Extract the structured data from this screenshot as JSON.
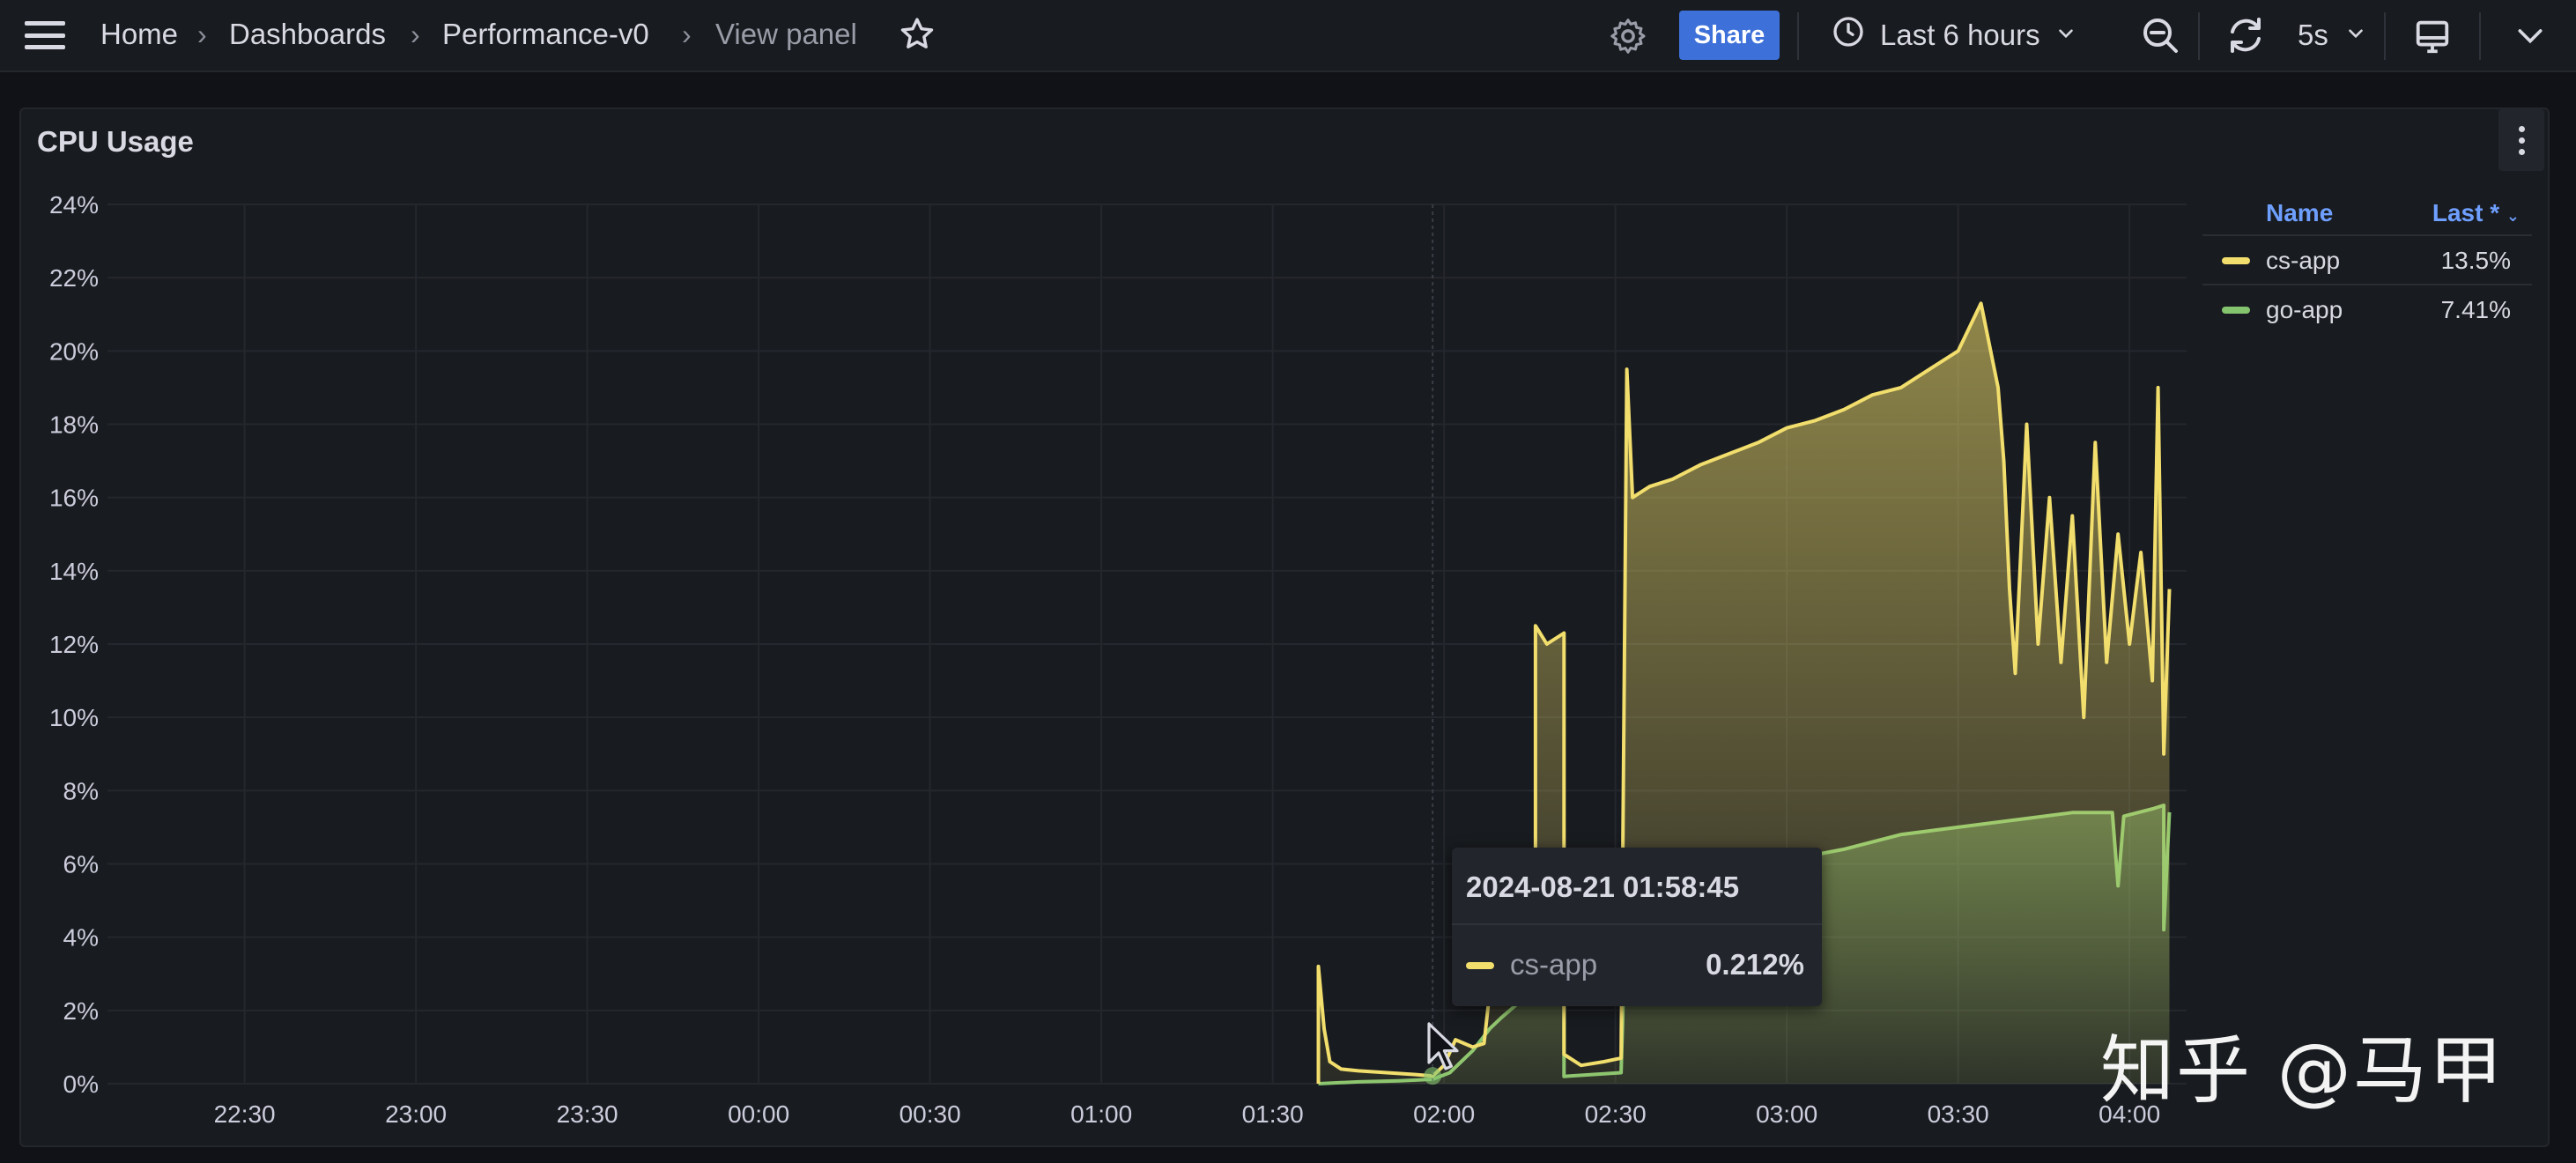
{
  "topbar": {
    "breadcrumb": [
      "Home",
      "Dashboards",
      "Performance-v0",
      "View panel"
    ],
    "separator": "›",
    "share_label": "Share",
    "time_range": "Last 6 hours",
    "refresh_interval": "5s"
  },
  "panel": {
    "title": "CPU Usage"
  },
  "legend": {
    "header_name": "Name",
    "header_last": "Last *",
    "sort_icon": "chevron-down-icon",
    "items": [
      {
        "name": "cs-app",
        "last": "13.5%",
        "color": "#f2de6d"
      },
      {
        "name": "go-app",
        "last": "7.41%",
        "color": "#85c46f"
      }
    ]
  },
  "tooltip": {
    "time": "2024-08-21 01:58:45",
    "series": "cs-app",
    "value": "0.212%",
    "color": "#f2de6d"
  },
  "watermark": "知乎 @马甲",
  "chart_data": {
    "type": "area",
    "title": "CPU Usage",
    "xlabel": "",
    "ylabel": "",
    "y_unit": "%",
    "ylim": [
      0,
      24
    ],
    "y_ticks": [
      "0%",
      "2%",
      "4%",
      "6%",
      "8%",
      "10%",
      "12%",
      "14%",
      "16%",
      "18%",
      "20%",
      "22%",
      "24%"
    ],
    "x_ticks": [
      "22:30",
      "23:00",
      "23:30",
      "00:00",
      "00:30",
      "01:00",
      "01:30",
      "02:00",
      "02:30",
      "03:00",
      "03:30",
      "04:00"
    ],
    "xlim": [
      "22:06",
      "04:10"
    ],
    "grid": true,
    "legend_position": "right",
    "series": [
      {
        "name": "cs-app",
        "color": "#f2de6d",
        "points": [
          [
            "01:38",
            0
          ],
          [
            "01:38",
            3.2
          ],
          [
            "01:39",
            1.5
          ],
          [
            "01:40",
            0.6
          ],
          [
            "01:42",
            0.4
          ],
          [
            "01:45",
            0.35
          ],
          [
            "01:50",
            0.3
          ],
          [
            "01:55",
            0.25
          ],
          [
            "01:58",
            0.21
          ],
          [
            "02:00",
            0.5
          ],
          [
            "02:02",
            1.2
          ],
          [
            "02:05",
            1.0
          ],
          [
            "02:07",
            1.1
          ],
          [
            "02:08",
            2.5
          ],
          [
            "02:10",
            2.2
          ],
          [
            "02:12",
            2.5
          ],
          [
            "02:16",
            2.4
          ],
          [
            "02:16",
            12.5
          ],
          [
            "02:18",
            12.0
          ],
          [
            "02:21",
            12.3
          ],
          [
            "02:21",
            0.8
          ],
          [
            "02:24",
            0.5
          ],
          [
            "02:28",
            0.6
          ],
          [
            "02:31",
            0.7
          ],
          [
            "02:32",
            19.5
          ],
          [
            "02:33",
            16.0
          ],
          [
            "02:36",
            16.3
          ],
          [
            "02:40",
            16.5
          ],
          [
            "02:45",
            16.9
          ],
          [
            "02:50",
            17.2
          ],
          [
            "02:55",
            17.5
          ],
          [
            "03:00",
            17.9
          ],
          [
            "03:05",
            18.1
          ],
          [
            "03:10",
            18.4
          ],
          [
            "03:15",
            18.8
          ],
          [
            "03:20",
            19.0
          ],
          [
            "03:25",
            19.5
          ],
          [
            "03:30",
            20.0
          ],
          [
            "03:34",
            21.3
          ],
          [
            "03:37",
            19.0
          ],
          [
            "03:38",
            17.0
          ],
          [
            "03:39",
            13.5
          ],
          [
            "03:40",
            11.2
          ],
          [
            "03:42",
            18.0
          ],
          [
            "03:44",
            12.0
          ],
          [
            "03:46",
            16.0
          ],
          [
            "03:48",
            11.5
          ],
          [
            "03:50",
            15.5
          ],
          [
            "03:52",
            10.0
          ],
          [
            "03:54",
            17.5
          ],
          [
            "03:56",
            11.5
          ],
          [
            "03:58",
            15.0
          ],
          [
            "04:00",
            12.0
          ],
          [
            "04:02",
            14.5
          ],
          [
            "04:04",
            11.0
          ],
          [
            "04:05",
            19.0
          ],
          [
            "04:06",
            9.0
          ],
          [
            "04:07",
            13.5
          ]
        ]
      },
      {
        "name": "go-app",
        "color": "#85c46f",
        "points": [
          [
            "01:38",
            0
          ],
          [
            "01:45",
            0.05
          ],
          [
            "01:52",
            0.08
          ],
          [
            "01:58",
            0.12
          ],
          [
            "02:01",
            0.3
          ],
          [
            "02:03",
            0.6
          ],
          [
            "02:05",
            0.9
          ],
          [
            "02:08",
            1.5
          ],
          [
            "02:10",
            1.8
          ],
          [
            "02:13",
            2.2
          ],
          [
            "02:16",
            2.2
          ],
          [
            "02:16",
            6.2
          ],
          [
            "02:21",
            6.0
          ],
          [
            "02:21",
            0.2
          ],
          [
            "02:31",
            0.3
          ],
          [
            "02:32",
            5.6
          ],
          [
            "02:40",
            5.7
          ],
          [
            "02:50",
            5.9
          ],
          [
            "03:00",
            6.1
          ],
          [
            "03:10",
            6.4
          ],
          [
            "03:20",
            6.8
          ],
          [
            "03:30",
            7.0
          ],
          [
            "03:40",
            7.2
          ],
          [
            "03:50",
            7.4
          ],
          [
            "03:57",
            7.4
          ],
          [
            "03:58",
            5.4
          ],
          [
            "03:59",
            7.3
          ],
          [
            "04:04",
            7.5
          ],
          [
            "04:06",
            7.6
          ],
          [
            "04:06",
            4.2
          ],
          [
            "04:07",
            7.41
          ]
        ]
      }
    ]
  }
}
